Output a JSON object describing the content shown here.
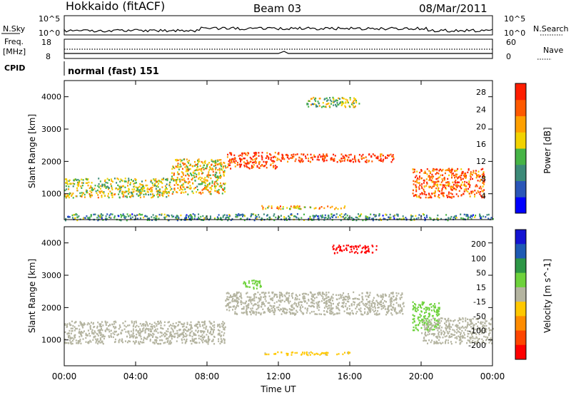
{
  "header": {
    "station": "Hokkaido (fitACF)",
    "beam": "Beam 03",
    "date": "08/Mar/2011"
  },
  "top_panels": {
    "nsky_label": "N.Sky",
    "nsearch_label": "N.Search",
    "nsky_ticks": [
      "10^5",
      "10^0"
    ],
    "nsearch_ticks": [
      "10^5",
      "10^0"
    ],
    "freq_label_line1": "Freq.",
    "freq_label_line2": "[MHz]",
    "freq_ticks": [
      "18",
      "8"
    ],
    "nave_label": "Nave",
    "nave_ticks": [
      "60",
      "0"
    ],
    "cpid_label": "CPID",
    "cpid_text": "normal (fast) 151"
  },
  "x_axis": {
    "label": "Time UT",
    "ticks": [
      "00:00",
      "04:00",
      "08:00",
      "12:00",
      "16:00",
      "20:00",
      "00:00"
    ]
  },
  "colors": {
    "power_scale": [
      "#0000ff",
      "#2a56b8",
      "#3c8a78",
      "#46b446",
      "#f2d200",
      "#ffa000",
      "#ff5a00",
      "#ff1e00"
    ],
    "velocity_scale": [
      "#1414d2",
      "#1e5ab4",
      "#2d9646",
      "#6ed23c",
      "#b4b4a0",
      "#ffc800",
      "#ff8c00",
      "#ff4600",
      "#ff0000"
    ]
  },
  "chart_data": [
    {
      "type": "heatmap",
      "name": "power",
      "ylabel": "Slant Range [km]",
      "xlabel": "",
      "x_range_hours": [
        0,
        24
      ],
      "ylim": [
        200,
        4500
      ],
      "y_ticks": [
        1000,
        2000,
        3000,
        4000
      ],
      "colorbar": {
        "label": "Power [dB]",
        "ticks": [
          4,
          8,
          12,
          16,
          20,
          24,
          28
        ],
        "range": [
          0,
          30
        ]
      },
      "echo_regions": [
        {
          "x": [
            0,
            6
          ],
          "y": [
            900,
            1500
          ],
          "value": 16
        },
        {
          "x": [
            6,
            9
          ],
          "y": [
            1000,
            2100
          ],
          "value": 18
        },
        {
          "x": [
            9,
            12
          ],
          "y": [
            1800,
            2300
          ],
          "value": 27
        },
        {
          "x": [
            12,
            18.5
          ],
          "y": [
            2000,
            2250
          ],
          "value": 28
        },
        {
          "x": [
            13.5,
            16.5
          ],
          "y": [
            3700,
            4000
          ],
          "value": 14
        },
        {
          "x": [
            11,
            16
          ],
          "y": [
            550,
            650
          ],
          "value": 20
        },
        {
          "x": [
            19.5,
            23.5
          ],
          "y": [
            900,
            1800
          ],
          "value": 24
        },
        {
          "x": [
            0,
            24
          ],
          "y": [
            200,
            400
          ],
          "value": 10
        }
      ]
    },
    {
      "type": "heatmap",
      "name": "velocity",
      "ylabel": "Slant Range [km]",
      "xlabel": "Time UT",
      "x_range_hours": [
        0,
        24
      ],
      "ylim": [
        200,
        4500
      ],
      "y_ticks": [
        1000,
        2000,
        3000,
        4000
      ],
      "colorbar": {
        "label": "Velocity [m s^-1]",
        "ticks": [
          200,
          100,
          50,
          15,
          -15,
          -50,
          -100,
          -200
        ],
        "range": [
          -250,
          250
        ]
      },
      "echo_regions": [
        {
          "x": [
            0,
            9
          ],
          "y": [
            900,
            1600
          ],
          "value": 0
        },
        {
          "x": [
            9,
            19
          ],
          "y": [
            1800,
            2500
          ],
          "value": 0
        },
        {
          "x": [
            15,
            17.5
          ],
          "y": [
            3700,
            3950
          ],
          "value": -220
        },
        {
          "x": [
            10,
            11
          ],
          "y": [
            2600,
            2900
          ],
          "value": 60
        },
        {
          "x": [
            19.5,
            21
          ],
          "y": [
            1300,
            2200
          ],
          "value": 60
        },
        {
          "x": [
            11,
            16
          ],
          "y": [
            550,
            650
          ],
          "value": -40
        },
        {
          "x": [
            20,
            24
          ],
          "y": [
            900,
            1700
          ],
          "value": 0
        }
      ]
    }
  ]
}
